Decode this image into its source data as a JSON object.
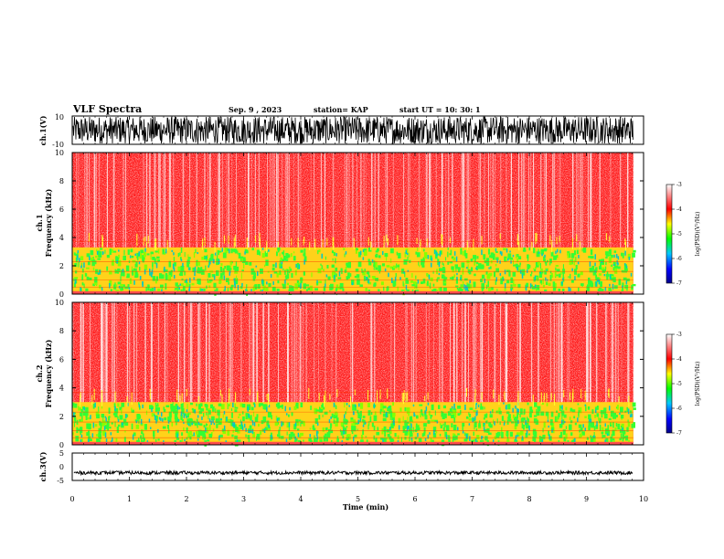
{
  "header": {
    "title": "VLF Spectra",
    "date": "Sep. 9 , 2023",
    "station": "station= KAP",
    "start": "start  UT =   10: 30: 1"
  },
  "chart_data": [
    {
      "type": "line",
      "name": "ch1-waveform",
      "ylabel": "ch.1(V)",
      "ylim": [
        -10,
        10
      ],
      "yticks": [
        "10",
        "-10"
      ],
      "xlim": [
        0,
        10
      ],
      "data_extent_min": 9.82
    },
    {
      "type": "heatmap",
      "name": "ch1-spectrogram",
      "ylabel": "ch.1\nFrequency (kHz)",
      "ylim": [
        0,
        10
      ],
      "yticks": [
        "0",
        "2",
        "4",
        "6",
        "8",
        "10"
      ],
      "xlim": [
        0,
        10
      ],
      "data_extent_min": 9.82,
      "colorbar": {
        "label": "log(PSD)(V²/Hz)",
        "range": [
          -7,
          -3
        ],
        "ticks": [
          "-3",
          "-4",
          "-5",
          "-6",
          "-7"
        ]
      },
      "bands_khz": {
        "high_intensity_top": 3.3,
        "low_intensity_bottom": 0.2
      }
    },
    {
      "type": "heatmap",
      "name": "ch2-spectrogram",
      "ylabel": "ch.2\nFrequency (kHz)",
      "ylim": [
        0,
        10
      ],
      "yticks": [
        "0",
        "2",
        "4",
        "6",
        "8",
        "10"
      ],
      "xlim": [
        0,
        10
      ],
      "data_extent_min": 9.82,
      "colorbar": {
        "label": "log(PSD)(V²/Hz)",
        "range": [
          -7,
          -3
        ],
        "ticks": [
          "-3",
          "-4",
          "-5",
          "-6",
          "-7"
        ]
      },
      "bands_khz": {
        "high_intensity_top": 3.0,
        "low_intensity_bottom": 0.2
      }
    },
    {
      "type": "line",
      "name": "ch3-waveform",
      "ylabel": "ch.3(V)",
      "ylim": [
        -5,
        5
      ],
      "yticks": [
        "5",
        "0",
        "-5"
      ],
      "xlim": [
        0,
        10
      ],
      "level_v": -2.2,
      "data_extent_min": 9.82
    }
  ],
  "xaxis": {
    "label": "Time (min)",
    "ticks": [
      "0",
      "1",
      "2",
      "3",
      "4",
      "5",
      "6",
      "7",
      "8",
      "9",
      "10"
    ],
    "range": [
      0,
      10
    ]
  }
}
